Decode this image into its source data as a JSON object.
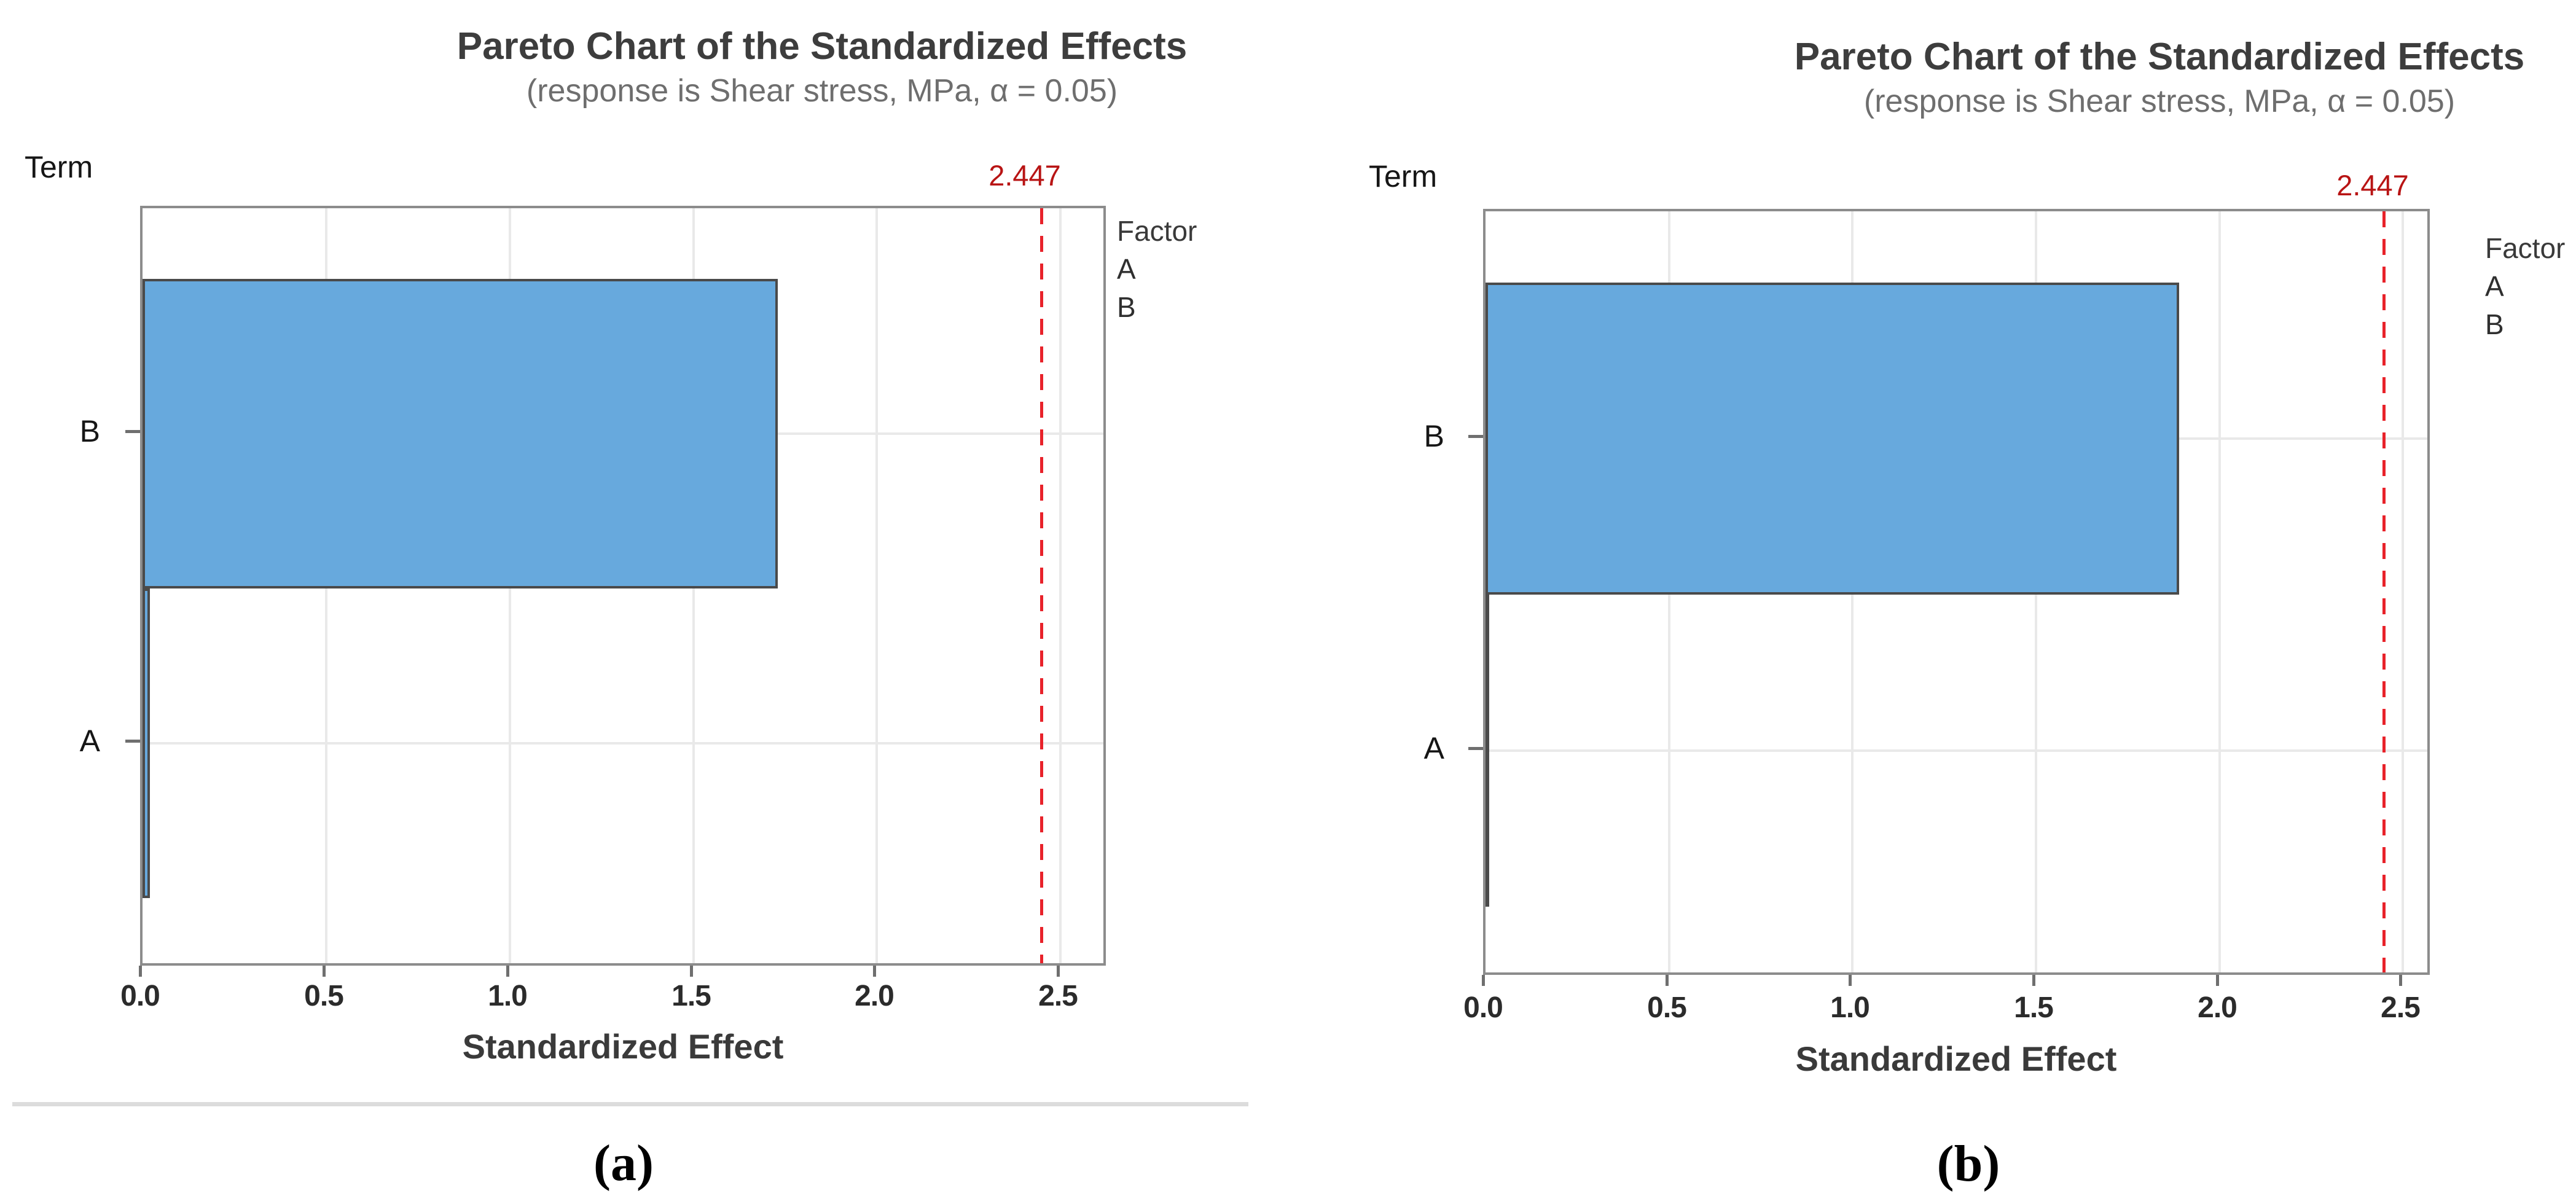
{
  "colors": {
    "bar_fill": "#67a9dd",
    "bar_border": "#4a4a4a",
    "grid": "#e9e9e9",
    "frame": "#8c8c8c",
    "reference_line": "#e8222a",
    "reference_label": "#b81414",
    "tick_mark": "#6f6f6f",
    "separator": "#dcdcdc"
  },
  "chart_data": [
    {
      "type": "bar",
      "orientation": "horizontal",
      "title": "Pareto Chart of the Standardized Effects",
      "subtitle": "(response is Shear stress, MPa, α = 0.05)",
      "term_axis_label": "Term",
      "xlabel": "Standardized Effect",
      "categories": [
        "B",
        "A"
      ],
      "values": [
        1.73,
        0.02
      ],
      "x_ticks": [
        0.0,
        0.5,
        1.0,
        1.5,
        2.0,
        2.5
      ],
      "x_tick_labels": [
        "0.0",
        "0.5",
        "1.0",
        "1.5",
        "2.0",
        "2.5"
      ],
      "xlim": [
        0,
        2.63
      ],
      "grid": true,
      "reference_line": {
        "value": 2.447,
        "label": "2.447"
      },
      "legend": {
        "title": "Factor",
        "items": [
          "A",
          "B"
        ],
        "position": "right"
      },
      "caption": "(a)"
    },
    {
      "type": "bar",
      "orientation": "horizontal",
      "title": "Pareto Chart of the Standardized Effects",
      "subtitle": "(response is Shear stress, MPa, α = 0.05)",
      "term_axis_label": "Term",
      "xlabel": "Standardized Effect",
      "categories": [
        "B",
        "A"
      ],
      "values": [
        1.89,
        0.005
      ],
      "x_ticks": [
        0.0,
        0.5,
        1.0,
        1.5,
        2.0,
        2.5
      ],
      "x_tick_labels": [
        "0.0",
        "0.5",
        "1.0",
        "1.5",
        "2.0",
        "2.5"
      ],
      "xlim": [
        0,
        2.58
      ],
      "grid": true,
      "reference_line": {
        "value": 2.447,
        "label": "2.447"
      },
      "legend": {
        "title": "Factor",
        "items": [
          "A",
          "B"
        ],
        "position": "right"
      },
      "caption": "(b)"
    }
  ]
}
